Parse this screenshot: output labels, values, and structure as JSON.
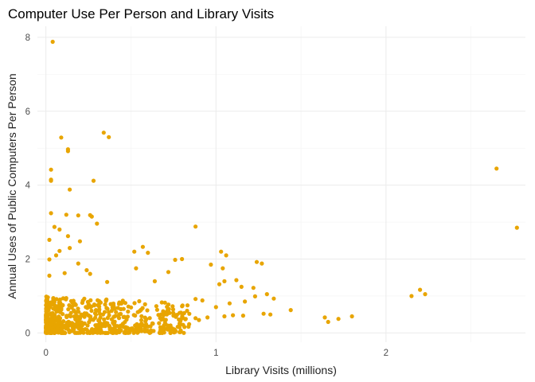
{
  "chart_data": {
    "type": "scatter",
    "title": "Computer Use Per Person and Library Visits",
    "xlabel": "Library Visits (millions)",
    "ylabel": "Annual Uses of Public Computers Per Person",
    "xlim": [
      -0.05,
      2.82
    ],
    "ylim": [
      -0.25,
      8.3
    ],
    "x_ticks": [
      0,
      1,
      2
    ],
    "y_ticks": [
      0,
      2,
      4,
      6,
      8
    ],
    "grid": true,
    "legend": "none",
    "point_color": "#E8A500",
    "outliers": [
      [
        0.04,
        7.88
      ],
      [
        0.34,
        5.42
      ],
      [
        0.37,
        5.3
      ],
      [
        0.09,
        5.29
      ],
      [
        0.13,
        4.97
      ],
      [
        0.13,
        4.92
      ],
      [
        0.03,
        4.42
      ],
      [
        0.03,
        4.15
      ],
      [
        0.03,
        4.12
      ],
      [
        0.28,
        4.12
      ],
      [
        0.14,
        3.88
      ],
      [
        0.03,
        3.24
      ],
      [
        0.12,
        3.2
      ],
      [
        0.19,
        3.18
      ],
      [
        0.26,
        3.19
      ],
      [
        0.27,
        3.15
      ],
      [
        0.3,
        2.96
      ],
      [
        0.05,
        2.87
      ],
      [
        0.08,
        2.8
      ],
      [
        0.88,
        2.88
      ],
      [
        0.13,
        2.62
      ],
      [
        0.02,
        2.52
      ],
      [
        0.2,
        2.48
      ],
      [
        0.06,
        2.1
      ],
      [
        0.57,
        2.33
      ],
      [
        0.6,
        2.17
      ],
      [
        0.08,
        2.22
      ],
      [
        0.14,
        2.3
      ],
      [
        0.02,
        1.99
      ],
      [
        0.52,
        2.2
      ],
      [
        1.03,
        2.2
      ],
      [
        1.06,
        2.1
      ],
      [
        0.8,
        2.0
      ],
      [
        0.76,
        1.98
      ],
      [
        1.24,
        1.92
      ],
      [
        1.27,
        1.88
      ],
      [
        0.97,
        1.85
      ],
      [
        1.04,
        1.75
      ],
      [
        0.53,
        1.75
      ],
      [
        0.19,
        1.88
      ],
      [
        0.24,
        1.7
      ],
      [
        0.11,
        1.62
      ],
      [
        0.26,
        1.6
      ],
      [
        0.02,
        1.55
      ],
      [
        0.64,
        1.4
      ],
      [
        0.72,
        1.65
      ],
      [
        1.12,
        1.43
      ],
      [
        1.05,
        1.4
      ],
      [
        0.36,
        1.38
      ],
      [
        1.02,
        1.32
      ],
      [
        1.15,
        1.25
      ],
      [
        1.22,
        1.22
      ],
      [
        2.2,
        1.17
      ],
      [
        2.15,
        1.0
      ],
      [
        2.23,
        1.05
      ],
      [
        1.3,
        1.05
      ],
      [
        1.23,
        0.99
      ],
      [
        1.34,
        0.93
      ],
      [
        1.17,
        0.85
      ],
      [
        1.08,
        0.8
      ],
      [
        0.88,
        0.92
      ],
      [
        0.92,
        0.88
      ],
      [
        1.0,
        0.7
      ],
      [
        1.44,
        0.62
      ],
      [
        1.28,
        0.52
      ],
      [
        1.32,
        0.5
      ],
      [
        1.64,
        0.42
      ],
      [
        1.72,
        0.38
      ],
      [
        1.8,
        0.45
      ],
      [
        1.66,
        0.3
      ],
      [
        0.88,
        0.4
      ],
      [
        0.9,
        0.35
      ],
      [
        0.95,
        0.42
      ],
      [
        1.05,
        0.45
      ],
      [
        1.1,
        0.48
      ],
      [
        1.16,
        0.47
      ],
      [
        0.83,
        0.6
      ],
      [
        0.7,
        0.82
      ],
      [
        2.65,
        4.45
      ],
      [
        2.77,
        2.85
      ]
    ],
    "cluster": {
      "count": 640,
      "x_range": [
        0.0,
        0.85
      ],
      "y_range": [
        0.0,
        1.0
      ],
      "note": "Dense mass of points near the origin"
    }
  }
}
